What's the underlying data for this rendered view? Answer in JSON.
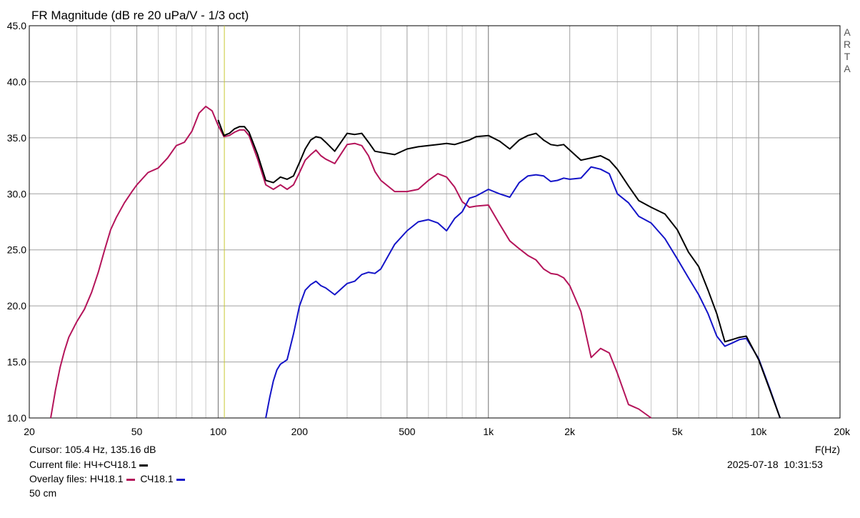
{
  "chart_data": {
    "type": "line",
    "title": "FR Magnitude (dB re 20 uPa/V - 1/3 oct)",
    "xlabel": "F(Hz)",
    "x_scale": "log",
    "xlim": [
      20,
      20000
    ],
    "ylim": [
      10,
      45
    ],
    "grid": true,
    "x_ticks": [
      20,
      50,
      100,
      200,
      500,
      1000,
      2000,
      5000,
      10000,
      20000
    ],
    "x_tick_labels": [
      "20",
      "50",
      "100",
      "200",
      "500",
      "1k",
      "2k",
      "5k",
      "10k",
      "20k"
    ],
    "y_ticks": [
      10,
      15,
      20,
      25,
      30,
      35,
      40,
      45
    ],
    "y_tick_labels": [
      "10.0",
      "15.0",
      "20.0",
      "25.0",
      "30.0",
      "35.0",
      "40.0",
      "45.0"
    ],
    "watermark": "ARTA",
    "cursor_x": 105.4,
    "series": [
      {
        "name": "НЧ+СЧ18.1",
        "color": "#000000",
        "x": [
          100,
          105,
          110,
          115,
          120,
          125,
          130,
          140,
          150,
          160,
          170,
          180,
          190,
          200,
          210,
          220,
          230,
          240,
          250,
          270,
          300,
          320,
          340,
          360,
          380,
          400,
          450,
          500,
          550,
          600,
          650,
          700,
          750,
          800,
          850,
          900,
          1000,
          1100,
          1200,
          1300,
          1400,
          1500,
          1600,
          1700,
          1800,
          1900,
          2000,
          2200,
          2400,
          2600,
          2800,
          3000,
          3300,
          3600,
          4000,
          4500,
          5000,
          5500,
          6000,
          6500,
          7000,
          7500,
          8000,
          8500,
          9000,
          10000,
          11000,
          12000
        ],
        "values": [
          36.6,
          35.2,
          35.4,
          35.8,
          36.0,
          36.0,
          35.5,
          33.5,
          31.2,
          31.0,
          31.5,
          31.3,
          31.6,
          32.8,
          34.0,
          34.8,
          35.1,
          35.0,
          34.6,
          33.8,
          35.4,
          35.3,
          35.4,
          34.6,
          33.8,
          33.7,
          33.5,
          34.0,
          34.2,
          34.3,
          34.4,
          34.5,
          34.4,
          34.6,
          34.8,
          35.1,
          35.2,
          34.7,
          34.0,
          34.8,
          35.2,
          35.4,
          34.8,
          34.4,
          34.3,
          34.4,
          33.9,
          33.0,
          33.2,
          33.4,
          33.0,
          32.2,
          30.7,
          29.4,
          28.8,
          28.2,
          26.8,
          24.8,
          23.5,
          21.4,
          19.3,
          16.8,
          17.0,
          17.2,
          17.3,
          15.2,
          12.5,
          10.0
        ]
      },
      {
        "name": "НЧ18.1",
        "color": "#b4145a",
        "x": [
          24,
          25,
          26,
          27,
          28,
          30,
          32,
          34,
          36,
          38,
          40,
          42,
          45,
          48,
          50,
          55,
          60,
          65,
          70,
          75,
          80,
          85,
          90,
          95,
          100,
          105,
          110,
          115,
          120,
          125,
          130,
          140,
          150,
          160,
          170,
          180,
          190,
          200,
          210,
          220,
          230,
          240,
          250,
          270,
          300,
          320,
          340,
          360,
          380,
          400,
          450,
          500,
          550,
          600,
          650,
          700,
          750,
          800,
          850,
          900,
          1000,
          1100,
          1200,
          1300,
          1400,
          1500,
          1600,
          1700,
          1800,
          1900,
          2000,
          2200,
          2400,
          2600,
          2800,
          3000,
          3300,
          3600,
          4000
        ],
        "values": [
          10.0,
          12.5,
          14.5,
          16.0,
          17.2,
          18.6,
          19.7,
          21.2,
          23.0,
          25.0,
          26.8,
          27.9,
          29.2,
          30.2,
          30.8,
          31.9,
          32.3,
          33.2,
          34.3,
          34.6,
          35.6,
          37.2,
          37.8,
          37.4,
          36.1,
          35.1,
          35.2,
          35.5,
          35.7,
          35.7,
          35.2,
          33.1,
          30.8,
          30.4,
          30.8,
          30.4,
          30.8,
          31.9,
          33.0,
          33.5,
          33.9,
          33.4,
          33.1,
          32.7,
          34.4,
          34.5,
          34.3,
          33.4,
          32.0,
          31.2,
          30.2,
          30.2,
          30.4,
          31.2,
          31.8,
          31.5,
          30.6,
          29.3,
          28.8,
          28.9,
          29.0,
          27.3,
          25.8,
          25.1,
          24.5,
          24.1,
          23.3,
          22.9,
          22.8,
          22.5,
          21.8,
          19.5,
          15.4,
          16.2,
          15.8,
          14.0,
          11.2,
          10.8,
          10.0
        ]
      },
      {
        "name": "СЧ18.1",
        "color": "#1414c8",
        "x": [
          150,
          155,
          160,
          165,
          170,
          175,
          180,
          190,
          200,
          210,
          220,
          230,
          240,
          250,
          270,
          300,
          320,
          340,
          360,
          380,
          400,
          450,
          500,
          550,
          600,
          650,
          700,
          750,
          800,
          850,
          900,
          1000,
          1100,
          1200,
          1300,
          1400,
          1500,
          1600,
          1700,
          1800,
          1900,
          2000,
          2200,
          2400,
          2600,
          2800,
          3000,
          3300,
          3600,
          4000,
          4500,
          5000,
          5500,
          6000,
          6500,
          7000,
          7500,
          8000,
          8500,
          9000,
          10000,
          11000,
          12000
        ],
        "values": [
          10.0,
          11.8,
          13.3,
          14.3,
          14.8,
          15.0,
          15.2,
          17.5,
          20.0,
          21.4,
          21.9,
          22.2,
          21.8,
          21.6,
          21.0,
          22.0,
          22.2,
          22.8,
          23.0,
          22.9,
          23.3,
          25.5,
          26.7,
          27.5,
          27.7,
          27.4,
          26.7,
          27.8,
          28.4,
          29.6,
          29.8,
          30.4,
          30.0,
          29.7,
          31.0,
          31.6,
          31.7,
          31.6,
          31.1,
          31.2,
          31.4,
          31.3,
          31.4,
          32.4,
          32.2,
          31.8,
          30.0,
          29.2,
          28.0,
          27.4,
          26.0,
          24.2,
          22.5,
          21.0,
          19.3,
          17.3,
          16.4,
          16.7,
          17.0,
          17.1,
          15.3,
          12.6,
          10.0
        ]
      }
    ]
  },
  "info": {
    "cursor_text": "Cursor: 105.4 Hz, 135.16 dB",
    "current_label": "Current file: НЧ+СЧ18.1",
    "overlay_label": "Overlay files:",
    "overlay_1": "НЧ18.1",
    "overlay_2": "СЧ18.1",
    "distance": "50 cm",
    "datetime": "2025-07-18  10:31:53"
  },
  "colors": {
    "grid": "#a0a0a0",
    "cursor": "#c8c832",
    "background": "#ffffff"
  }
}
